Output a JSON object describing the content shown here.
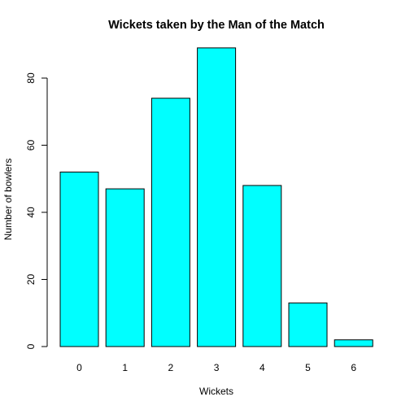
{
  "chart_data": {
    "type": "bar",
    "title": "Wickets taken by the Man of the Match",
    "xlabel": "Wickets",
    "ylabel": "Number of bowlers",
    "categories": [
      "0",
      "1",
      "2",
      "3",
      "4",
      "5",
      "6"
    ],
    "values": [
      52,
      47,
      74,
      89,
      48,
      13,
      2
    ],
    "ylim": [
      0,
      93
    ],
    "yticks": [
      0,
      20,
      40,
      60,
      80
    ],
    "bar_color": "#00ffff",
    "grid": false,
    "legend": "none"
  }
}
